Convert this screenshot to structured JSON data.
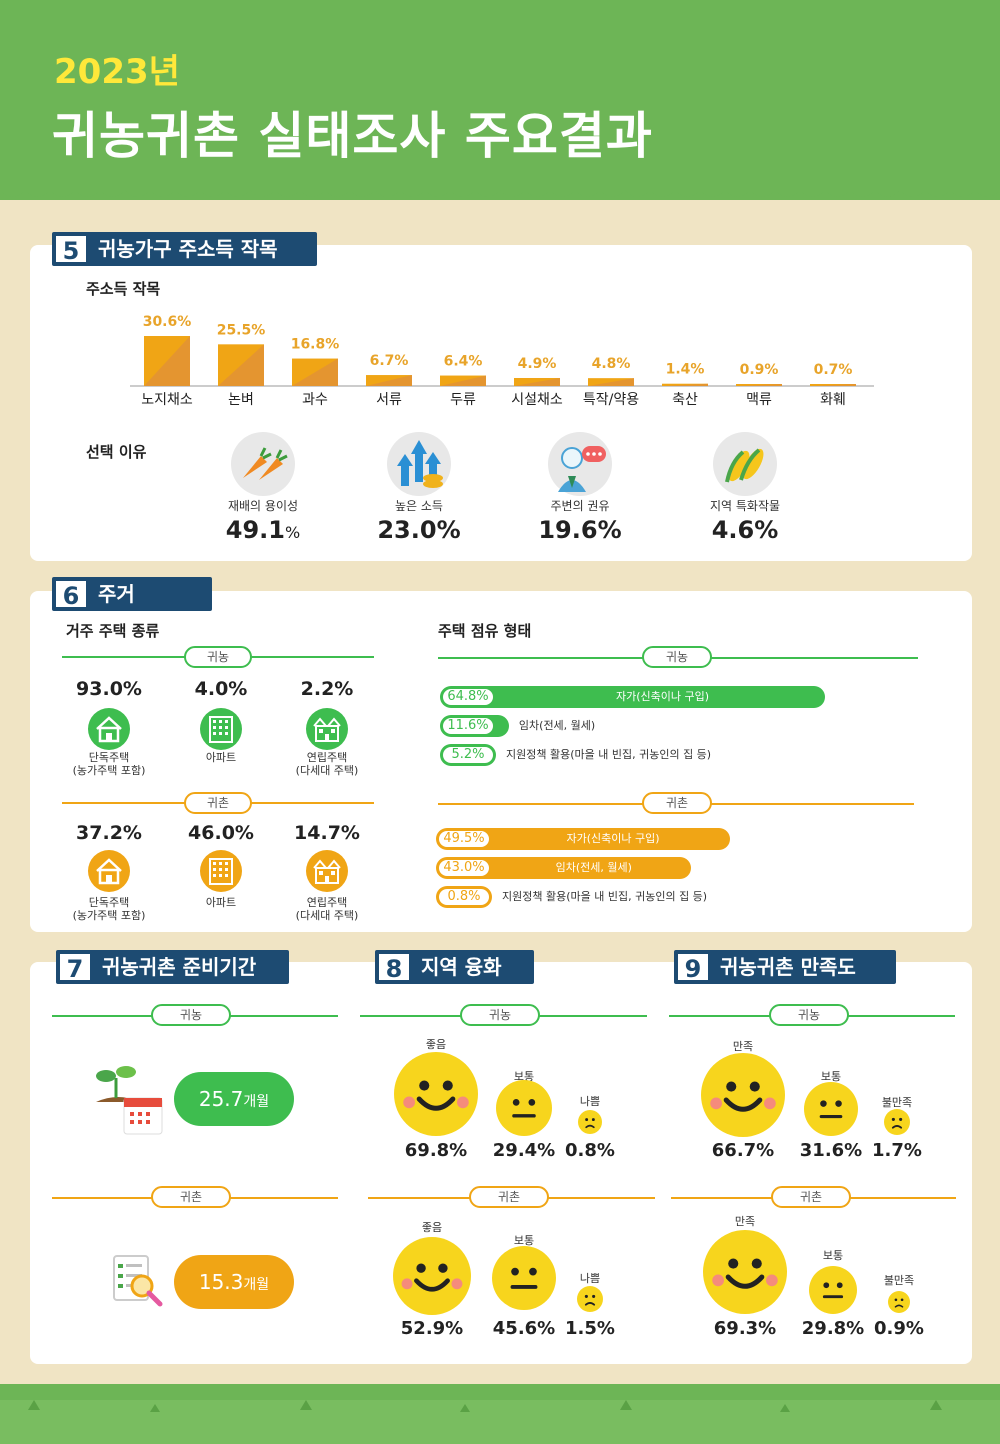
{
  "header": {
    "year": "2023년",
    "title": "귀농귀촌 실태조사 주요결과"
  },
  "colors": {
    "green": "#6db556",
    "navy": "#1d4b72",
    "bar_green": "#3ebd4f",
    "bar_orange": "#f0a515",
    "bg": "#f0e4c4",
    "face": "#f7d51d"
  },
  "section5": {
    "num": "5",
    "title": "귀농가구 주소득 작목",
    "chart_label": "주소득 작목",
    "reason_label": "선택 이유",
    "reasons": [
      {
        "icon": "carrot-icon",
        "label": "재배의 용이성",
        "value": "49.1",
        "unit": "%"
      },
      {
        "icon": "rising-arrows-icon",
        "label": "높은 소득",
        "value": "23.0%",
        "unit": ""
      },
      {
        "icon": "person-chat-icon",
        "label": "주변의 권유",
        "value": "19.6%",
        "unit": ""
      },
      {
        "icon": "corn-icon",
        "label": "지역 특화작물",
        "value": "4.6%",
        "unit": ""
      }
    ]
  },
  "chart_data": {
    "type": "bar",
    "categories": [
      "노지채소",
      "논벼",
      "과수",
      "서류",
      "두류",
      "시설채소",
      "특작/약용",
      "축산",
      "맥류",
      "화훼"
    ],
    "values": [
      30.6,
      25.5,
      16.8,
      6.7,
      6.4,
      4.9,
      4.8,
      1.4,
      0.9,
      0.7
    ],
    "labels": [
      "30.6%",
      "25.5%",
      "16.8%",
      "6.7%",
      "6.4%",
      "4.9%",
      "4.8%",
      "1.4%",
      "0.9%",
      "0.7%"
    ],
    "title": "주소득 작목",
    "xlabel": "",
    "ylabel": "",
    "ylim": [
      0,
      30.6
    ],
    "color": "#f0a515"
  },
  "section6": {
    "num": "6",
    "title": "주거",
    "type_label": "거주 주택 종류",
    "tenure_label": "주택 점유 형태",
    "farm_tag": "귀농",
    "rural_tag": "귀촌",
    "farm_types": [
      {
        "value": "93.0%",
        "label": "단독주택\n(농가주택 포함)",
        "icon": "house-icon"
      },
      {
        "value": "4.0%",
        "label": "아파트",
        "icon": "apartment-icon"
      },
      {
        "value": "2.2%",
        "label": "연립주택\n(다세대 주택)",
        "icon": "townhouse-icon"
      }
    ],
    "rural_types": [
      {
        "value": "37.2%",
        "label": "단독주택\n(농가주택 포함)",
        "icon": "house-icon"
      },
      {
        "value": "46.0%",
        "label": "아파트",
        "icon": "apartment-icon"
      },
      {
        "value": "14.7%",
        "label": "연립주택\n(다세대 주택)",
        "icon": "townhouse-icon"
      }
    ],
    "farm_tenure": [
      {
        "value": "64.8%",
        "pct": 64.8,
        "label": "자가(신축이나 구입)"
      },
      {
        "value": "11.6%",
        "pct": 11.6,
        "label": "임차(전세, 월세)"
      },
      {
        "value": "5.2%",
        "pct": 5.2,
        "label": "지원정책 활용(마을 내 빈집, 귀농인의 집 등)"
      }
    ],
    "rural_tenure": [
      {
        "value": "49.5%",
        "pct": 49.5,
        "label": "자가(신축이나 구입)"
      },
      {
        "value": "43.0%",
        "pct": 43.0,
        "label": "임차(전세, 월세)"
      },
      {
        "value": "0.8%",
        "pct": 0.8,
        "label": "지원정책 활용(마을 내 빈집, 귀농인의 집 등)"
      }
    ]
  },
  "section7": {
    "num": "7",
    "title": "귀농귀촌 준비기간",
    "farm_tag": "귀농",
    "rural_tag": "귀촌",
    "farm_value": "25.7",
    "farm_unit": "개월",
    "rural_value": "15.3",
    "rural_unit": "개월"
  },
  "section8": {
    "num": "8",
    "title": "지역 융화",
    "farm_tag": "귀농",
    "rural_tag": "귀촌",
    "labels": [
      "좋음",
      "보통",
      "나쁨"
    ],
    "farm": [
      "69.8%",
      "29.4%",
      "0.8%"
    ],
    "rural": [
      "52.9%",
      "45.6%",
      "1.5%"
    ]
  },
  "section9": {
    "num": "9",
    "title": "귀농귀촌 만족도",
    "farm_tag": "귀농",
    "rural_tag": "귀촌",
    "labels": [
      "만족",
      "보통",
      "불만족"
    ],
    "farm": [
      "66.7%",
      "31.6%",
      "1.7%"
    ],
    "rural": [
      "69.3%",
      "29.8%",
      "0.9%"
    ]
  }
}
